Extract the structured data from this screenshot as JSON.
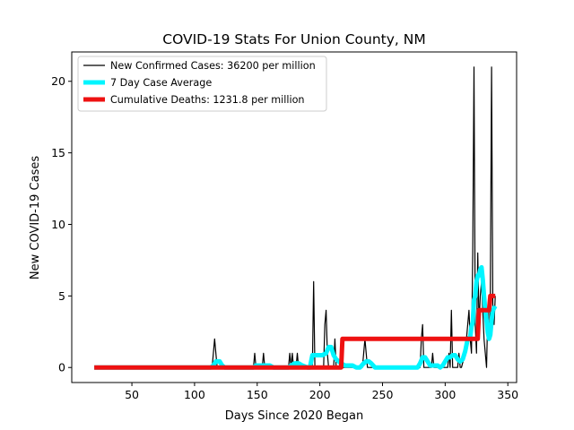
{
  "chart_data": {
    "type": "line",
    "title": "COVID-19 Stats For Union County, NM",
    "xlabel": "Days Since 2020 Began",
    "ylabel": "New COVID-19 Cases",
    "xlim": [
      2,
      357
    ],
    "ylim": [
      -1.05,
      22.05
    ],
    "xticks": [
      50,
      100,
      150,
      200,
      250,
      300,
      350
    ],
    "yticks": [
      0,
      5,
      10,
      15,
      20
    ],
    "legend_position": "top-left",
    "grid": false,
    "series": [
      {
        "name": "New Confirmed Cases: 36200 per million",
        "color": "#000000",
        "x": [
          20,
          113,
          114,
          115,
          116,
          117,
          118,
          119,
          120,
          147,
          148,
          149,
          154,
          155,
          156,
          175,
          176,
          177,
          178,
          179,
          180,
          181,
          182,
          183,
          184,
          194,
          195,
          196,
          203,
          204,
          205,
          206,
          207,
          211,
          212,
          213,
          216,
          217,
          218,
          234,
          235,
          236,
          237,
          238,
          280,
          281,
          282,
          283,
          289,
          290,
          291,
          302,
          303,
          304,
          305,
          306,
          310,
          311,
          312,
          313,
          316,
          317,
          318,
          319,
          320,
          321,
          322,
          323,
          324,
          325,
          326,
          327,
          328,
          329,
          330,
          331,
          332,
          333,
          334,
          335,
          336,
          337,
          338,
          339,
          340
        ],
        "y": [
          0,
          0,
          0,
          1,
          2,
          1,
          0,
          0,
          0,
          0,
          1,
          0,
          0,
          1,
          0,
          0,
          1,
          0,
          1,
          0,
          0,
          0,
          1,
          0,
          0,
          0,
          6,
          0,
          0,
          3,
          4,
          1,
          0,
          0,
          2,
          0,
          0,
          1,
          0,
          0,
          1,
          2,
          1,
          0,
          0,
          2,
          3,
          0,
          0,
          1,
          0,
          0,
          1,
          0,
          4,
          0,
          0,
          1,
          0,
          0,
          1,
          2,
          3,
          4,
          2,
          1,
          8,
          21,
          3,
          1,
          8,
          3,
          5,
          6,
          4,
          2,
          1,
          0,
          4,
          2,
          5,
          21,
          4,
          3,
          5
        ]
      },
      {
        "name": "7 Day Case Average",
        "color": "#00f5ff",
        "x": [
          20,
          113,
          115,
          117,
          120,
          122,
          124,
          147,
          149,
          151,
          153,
          155,
          157,
          160,
          163,
          175,
          177,
          180,
          183,
          186,
          190,
          192,
          194,
          196,
          198,
          202,
          205,
          207,
          209,
          211,
          213,
          215,
          217,
          220,
          223,
          226,
          229,
          232,
          235,
          237,
          239,
          241,
          244,
          250,
          260,
          270,
          278,
          280,
          282,
          284,
          286,
          288,
          290,
          292,
          294,
          296,
          298,
          300,
          302,
          304,
          306,
          308,
          310,
          312,
          314,
          316,
          318,
          320,
          321,
          322,
          323,
          324,
          325,
          326,
          327,
          328,
          329,
          330,
          331,
          332,
          333,
          334,
          335,
          336,
          337,
          338,
          339,
          340
        ],
        "y": [
          0,
          0,
          0.14,
          0.43,
          0.43,
          0.14,
          0,
          0,
          0.14,
          0.14,
          0.14,
          0.14,
          0.14,
          0.14,
          0,
          0,
          0.14,
          0.29,
          0.29,
          0.14,
          0,
          0,
          0.86,
          0.86,
          0.86,
          0.86,
          1.0,
          1.43,
          1.43,
          0.86,
          0.57,
          0.43,
          0.29,
          0.14,
          0.14,
          0.14,
          0,
          0,
          0.29,
          0.43,
          0.43,
          0.29,
          0,
          0,
          0,
          0,
          0,
          0.29,
          0.71,
          0.71,
          0.43,
          0.14,
          0.14,
          0.14,
          0.14,
          0,
          0.14,
          0.43,
          0.71,
          0.71,
          0.86,
          0.86,
          0.57,
          0.43,
          0.57,
          1.14,
          2.0,
          2.14,
          2.86,
          3.14,
          4.71,
          5.0,
          6.0,
          6.43,
          6.43,
          6.86,
          7.0,
          6.14,
          5.0,
          4.0,
          3.29,
          2.43,
          2.0,
          2.29,
          3.29,
          4.0,
          4.14,
          4.29
        ]
      },
      {
        "name": "Cumulative Deaths: 1231.8 per million",
        "color": "#ee1111",
        "x": [
          20,
          217,
          218,
          326,
          327,
          335,
          336,
          340
        ],
        "y": [
          0,
          0,
          2,
          2,
          4,
          4,
          5,
          5
        ]
      }
    ]
  }
}
